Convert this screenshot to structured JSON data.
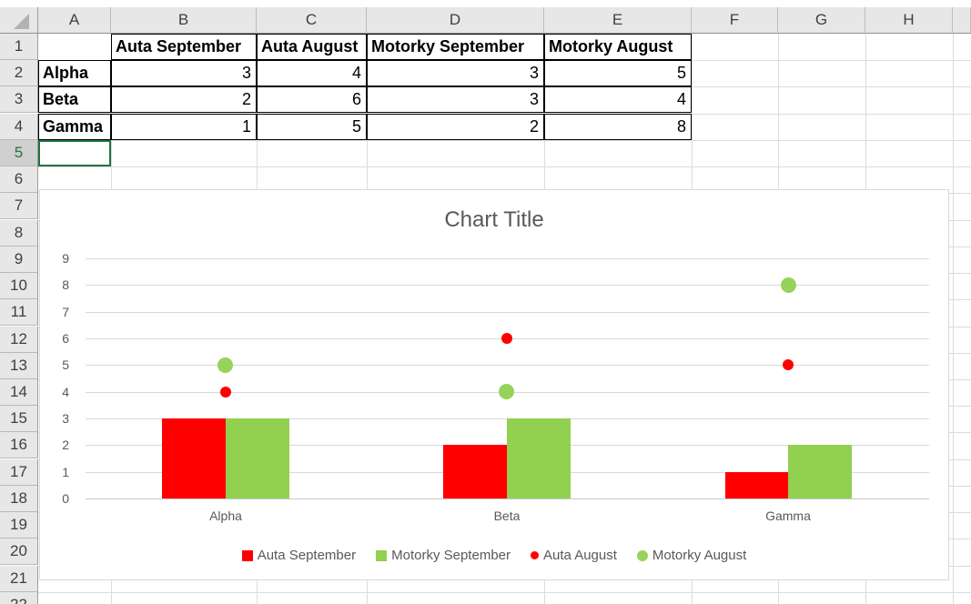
{
  "sheet": {
    "column_letters": [
      "A",
      "B",
      "C",
      "D",
      "E",
      "F",
      "G",
      "H",
      ""
    ],
    "visible_rows": 22,
    "selected_row": 5,
    "selected_cell": "A5",
    "table": {
      "header_row": [
        "Auta September",
        "Auta August",
        "Motorky September",
        "Motorky August"
      ],
      "data_rows": [
        {
          "label": "Alpha",
          "values": [
            "3",
            "4",
            "3",
            "5"
          ]
        },
        {
          "label": "Beta",
          "values": [
            "2",
            "6",
            "3",
            "4"
          ]
        },
        {
          "label": "Gamma",
          "values": [
            "1",
            "5",
            "2",
            "8"
          ]
        }
      ]
    }
  },
  "chart_data": {
    "type": "combo",
    "title": "Chart Title",
    "categories": [
      "Alpha",
      "Beta",
      "Gamma"
    ],
    "series": [
      {
        "name": "Auta September",
        "type": "bar",
        "color": "#FF0000",
        "values": [
          3,
          2,
          1
        ]
      },
      {
        "name": "Motorky September",
        "type": "bar",
        "color": "#92D050",
        "values": [
          3,
          3,
          2
        ]
      },
      {
        "name": "Auta August",
        "type": "scatter",
        "color": "#FF0000",
        "values": [
          4,
          6,
          5
        ],
        "marker_size": 12
      },
      {
        "name": "Motorky August",
        "type": "scatter",
        "color": "#97D25A",
        "values": [
          5,
          4,
          8
        ],
        "marker_size": 17
      }
    ],
    "ylim": [
      0,
      9
    ],
    "yticks": [
      0,
      1,
      2,
      3,
      4,
      5,
      6,
      7,
      8,
      9
    ],
    "gridlines": true,
    "legend_position": "bottom",
    "legend": [
      "Auta September",
      "Motorky September",
      "Auta August",
      "Motorky August"
    ]
  },
  "colors": {
    "accent_green": "#217346",
    "bar_red": "#FF0000",
    "bar_green": "#92D050",
    "chart_text": "#595959",
    "chart_gridline": "#D9D9D9"
  }
}
